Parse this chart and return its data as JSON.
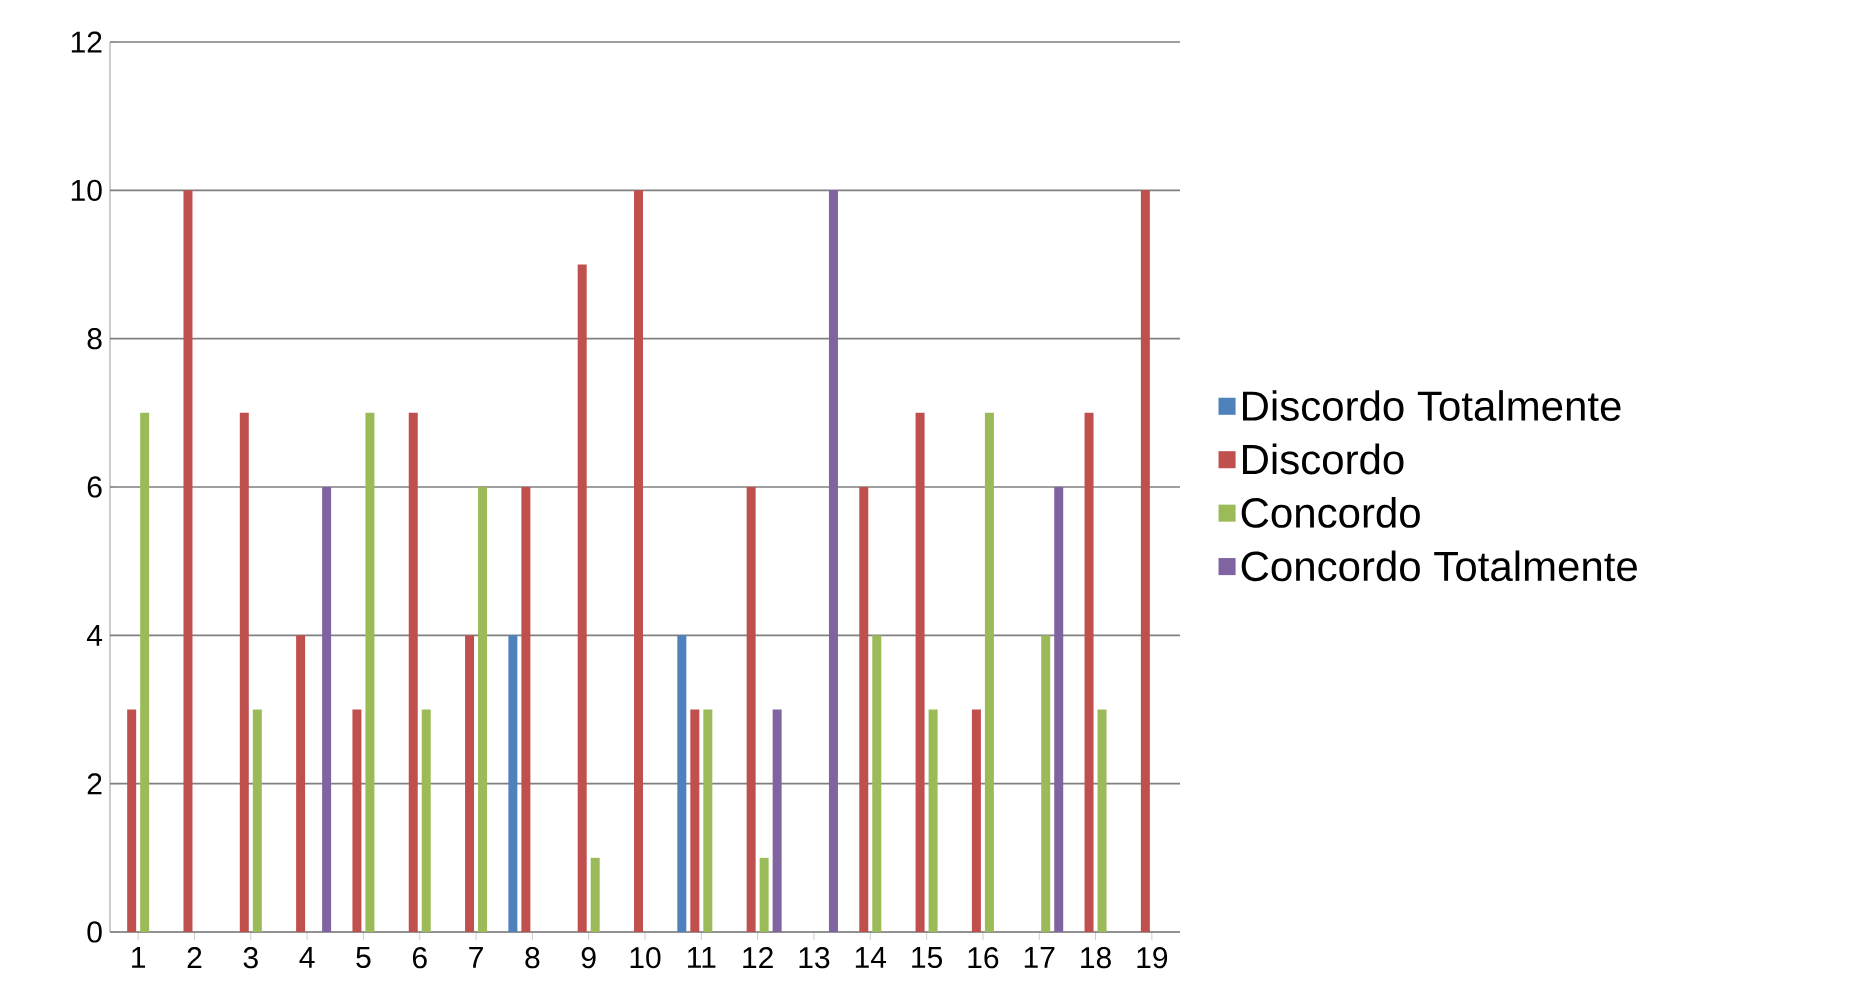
{
  "chart_data": {
    "type": "bar",
    "categories": [
      "1",
      "2",
      "3",
      "4",
      "5",
      "6",
      "7",
      "8",
      "9",
      "10",
      "11",
      "12",
      "13",
      "14",
      "15",
      "16",
      "17",
      "18",
      "19"
    ],
    "series": [
      {
        "name": "Discordo Totalmente",
        "color": "#4f81bd",
        "values": [
          0,
          0,
          0,
          0,
          0,
          0,
          0,
          4,
          0,
          0,
          4,
          0,
          0,
          0,
          0,
          0,
          0,
          0,
          0
        ]
      },
      {
        "name": "Discordo",
        "color": "#c0504d",
        "values": [
          3,
          10,
          7,
          4,
          3,
          7,
          4,
          6,
          9,
          10,
          3,
          6,
          0,
          6,
          7,
          3,
          0,
          7,
          10
        ]
      },
      {
        "name": "Concordo",
        "color": "#9bbb59",
        "values": [
          7,
          0,
          3,
          0,
          7,
          3,
          6,
          0,
          1,
          0,
          3,
          1,
          0,
          4,
          3,
          7,
          4,
          3,
          0
        ]
      },
      {
        "name": "Concordo Totalmente",
        "color": "#8064a2",
        "values": [
          0,
          0,
          0,
          6,
          0,
          0,
          0,
          0,
          0,
          0,
          0,
          3,
          10,
          0,
          0,
          0,
          6,
          0,
          0
        ]
      }
    ],
    "ylim": [
      0,
      12
    ],
    "yticks": [
      0,
      2,
      4,
      6,
      8,
      10,
      12
    ],
    "grid": "y",
    "legend": "right"
  }
}
